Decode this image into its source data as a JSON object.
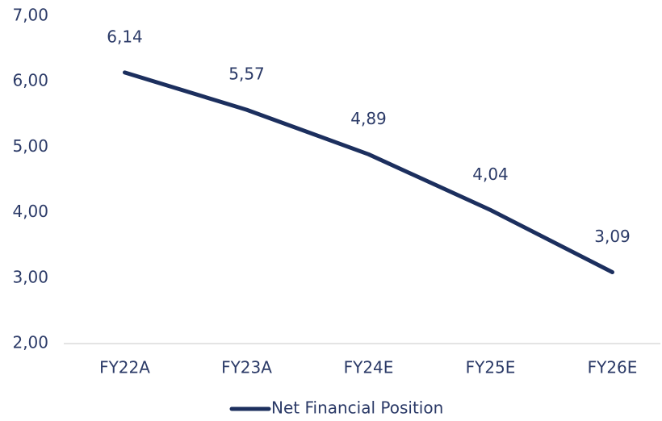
{
  "chart_data": {
    "type": "line",
    "categories": [
      "FY22A",
      "FY23A",
      "FY24E",
      "FY25E",
      "FY26E"
    ],
    "series": [
      {
        "name": "Net Financial Position",
        "color": "#1c2f5e",
        "values": [
          6.14,
          5.57,
          4.89,
          4.04,
          3.09
        ],
        "value_labels": [
          "6,14",
          "5,57",
          "4,89",
          "4,04",
          "3,09"
        ]
      }
    ],
    "ylim": [
      2,
      7
    ],
    "yticks": [
      {
        "value": 2,
        "label": "2,00"
      },
      {
        "value": 3,
        "label": "3,00"
      },
      {
        "value": 4,
        "label": "4,00"
      },
      {
        "value": 5,
        "label": "5,00"
      },
      {
        "value": 6,
        "label": "6,00"
      },
      {
        "value": 7,
        "label": "7,00"
      }
    ],
    "grid": false,
    "legend": "bottom"
  }
}
